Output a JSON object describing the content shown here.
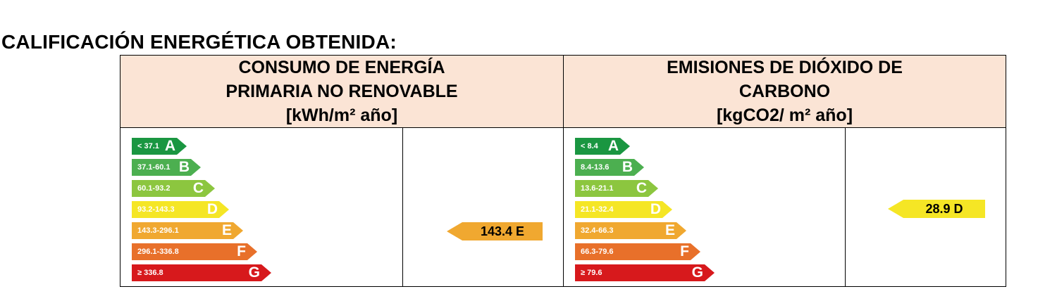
{
  "page": {
    "title": "CALIFICACIÓN ENERGÉTICA OBTENIDA:"
  },
  "energy": {
    "header": [
      "CONSUMO DE ENERGÍA",
      "PRIMARIA NO RENOVABLE",
      "[kWh/m² año]"
    ],
    "scale": [
      {
        "range": "< 37.1",
        "letter": "A",
        "color": "#1a9641"
      },
      {
        "range": "37.1-60.1",
        "letter": "B",
        "color": "#4caf50"
      },
      {
        "range": "60.1-93.2",
        "letter": "C",
        "color": "#8cc63f"
      },
      {
        "range": "93.2-143.3",
        "letter": "D",
        "color": "#f5e625"
      },
      {
        "range": "143.3-296.1",
        "letter": "E",
        "color": "#f0a830"
      },
      {
        "range": "296.1-336.8",
        "letter": "F",
        "color": "#e8702a"
      },
      {
        "range": "≥ 336.8",
        "letter": "G",
        "color": "#d7191c"
      }
    ],
    "result": {
      "label": "143.4 E",
      "color": "#f0a830"
    }
  },
  "co2": {
    "header": [
      "EMISIONES DE DIÓXIDO DE",
      "CARBONO",
      "[kgCO2/ m² año]"
    ],
    "scale": [
      {
        "range": "< 8.4",
        "letter": "A",
        "color": "#1a9641"
      },
      {
        "range": "8.4-13.6",
        "letter": "B",
        "color": "#4caf50"
      },
      {
        "range": "13.6-21.1",
        "letter": "C",
        "color": "#8cc63f"
      },
      {
        "range": "21.1-32.4",
        "letter": "D",
        "color": "#f5e625"
      },
      {
        "range": "32.4-66.3",
        "letter": "E",
        "color": "#f0a830"
      },
      {
        "range": "66.3-79.6",
        "letter": "F",
        "color": "#e8702a"
      },
      {
        "range": "≥ 79.6",
        "letter": "G",
        "color": "#d7191c"
      }
    ],
    "result": {
      "label": "28.9 D",
      "color": "#f5e625"
    }
  }
}
